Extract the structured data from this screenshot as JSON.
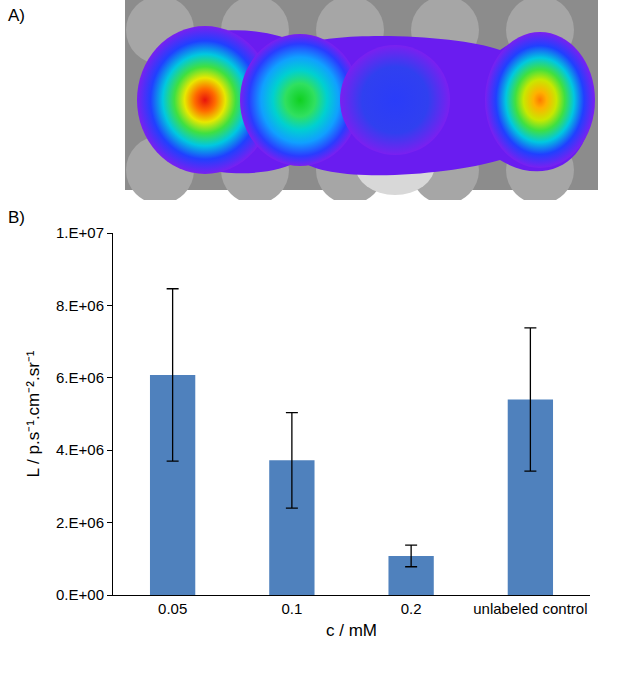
{
  "panel_labels": [
    "A)",
    "B)"
  ],
  "chart_data": {
    "type": "bar",
    "categories": [
      "0.05",
      "0.1",
      "0.2",
      "unlabeled control"
    ],
    "values": [
      6080000,
      3720000,
      1080000,
      5400000
    ],
    "errors": [
      2380000,
      1320000,
      300000,
      1980000
    ],
    "color": "#4f81bd",
    "x_label": "c / mM",
    "y_label": "L / p.s⁻¹.cm⁻².sr⁻¹",
    "ylim": [
      0,
      10000000
    ],
    "yticks": [
      {
        "value": 0,
        "label": "0.E+00"
      },
      {
        "value": 2000000,
        "label": "2.E+06"
      },
      {
        "value": 4000000,
        "label": "4.E+06"
      },
      {
        "value": 6000000,
        "label": "6.E+06"
      },
      {
        "value": 8000000,
        "label": "8.E+06"
      },
      {
        "value": 10000000,
        "label": "1.E+07"
      }
    ],
    "grid": false
  }
}
